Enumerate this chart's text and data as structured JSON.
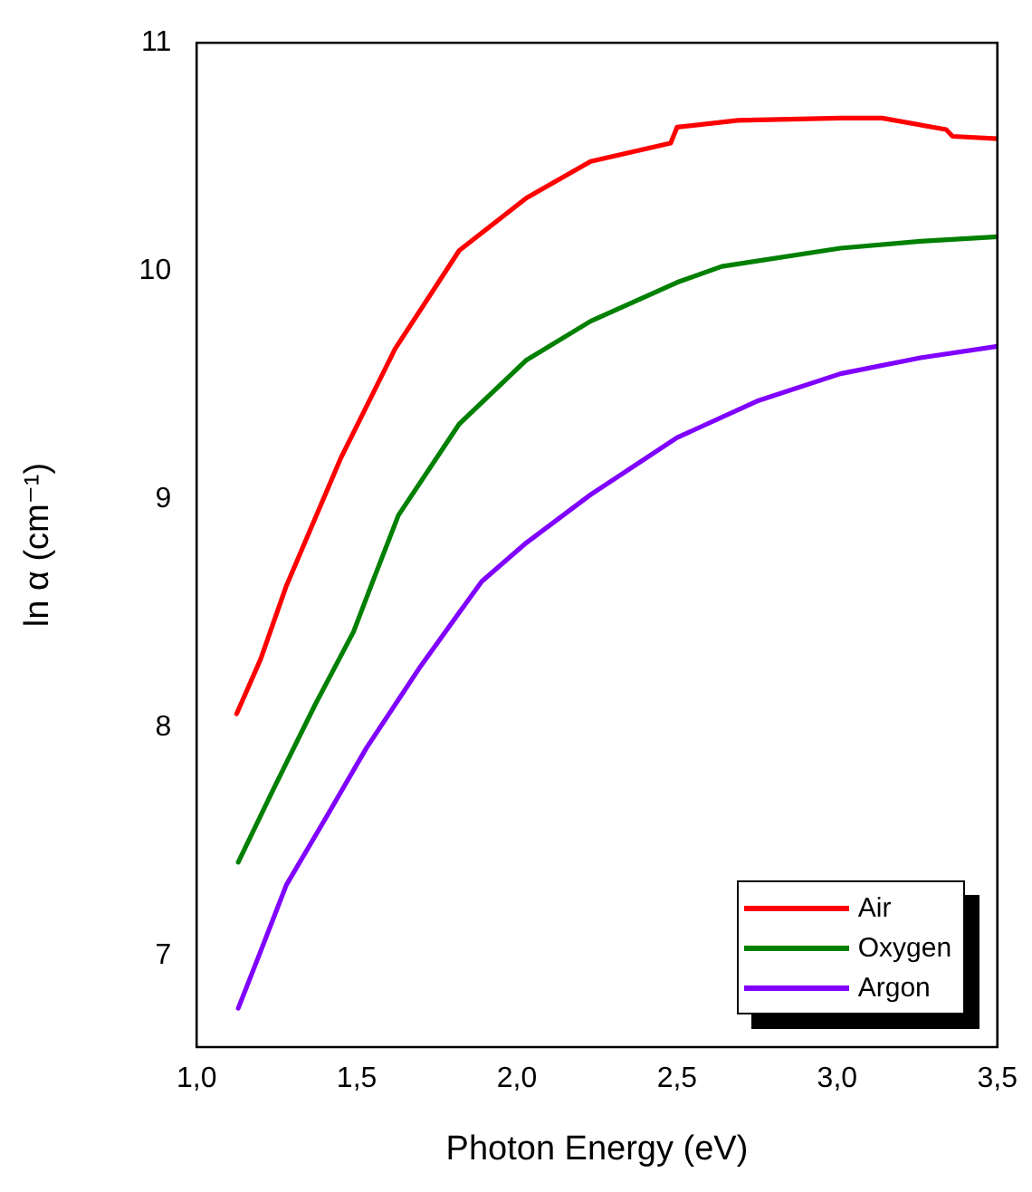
{
  "chart_data": {
    "type": "line",
    "xlabel": "Photon Energy (eV)",
    "ylabel": "ln α (cm⁻¹)",
    "xlim": [
      1.0,
      3.5
    ],
    "xticks": [
      {
        "value": 1.0,
        "label": "1,0"
      },
      {
        "value": 1.5,
        "label": "1,5"
      },
      {
        "value": 2.0,
        "label": "2,0"
      },
      {
        "value": 2.5,
        "label": "2,5"
      },
      {
        "value": 3.0,
        "label": "3,0"
      },
      {
        "value": 3.5,
        "label": "3,5"
      }
    ],
    "ylim": [
      6.6,
      11
    ],
    "yticks": [
      7,
      8,
      9,
      10,
      11
    ],
    "grid": false,
    "legend": "bottom right",
    "marker": "none",
    "line_style": "solid",
    "series": [
      {
        "name": "Air",
        "color": "#ff0000",
        "x": [
          1.125,
          1.2,
          1.28,
          1.45,
          1.62,
          1.82,
          2.03,
          2.23,
          2.48,
          2.5,
          2.69,
          3.01,
          3.14,
          3.34,
          3.36,
          3.5
        ],
        "values": [
          8.06,
          8.3,
          8.62,
          9.18,
          9.66,
          10.09,
          10.32,
          10.48,
          10.56,
          10.63,
          10.66,
          10.67,
          10.67,
          10.62,
          10.59,
          10.58
        ]
      },
      {
        "name": "Oxygen",
        "color": "#008000",
        "x": [
          1.13,
          1.24,
          1.37,
          1.49,
          1.55,
          1.63,
          1.82,
          2.03,
          2.23,
          2.5,
          2.64,
          3.01,
          3.26,
          3.5
        ],
        "values": [
          7.41,
          7.73,
          8.1,
          8.42,
          8.64,
          8.93,
          9.33,
          9.61,
          9.78,
          9.95,
          10.02,
          10.1,
          10.13,
          10.15
        ]
      },
      {
        "name": "Argon",
        "color": "#8000ff",
        "x": [
          1.13,
          1.2,
          1.28,
          1.41,
          1.53,
          1.7,
          1.89,
          2.03,
          2.23,
          2.5,
          2.75,
          3.01,
          3.26,
          3.5
        ],
        "values": [
          6.77,
          7.02,
          7.31,
          7.62,
          7.91,
          8.27,
          8.64,
          8.81,
          9.02,
          9.27,
          9.43,
          9.55,
          9.62,
          9.67
        ]
      }
    ]
  }
}
